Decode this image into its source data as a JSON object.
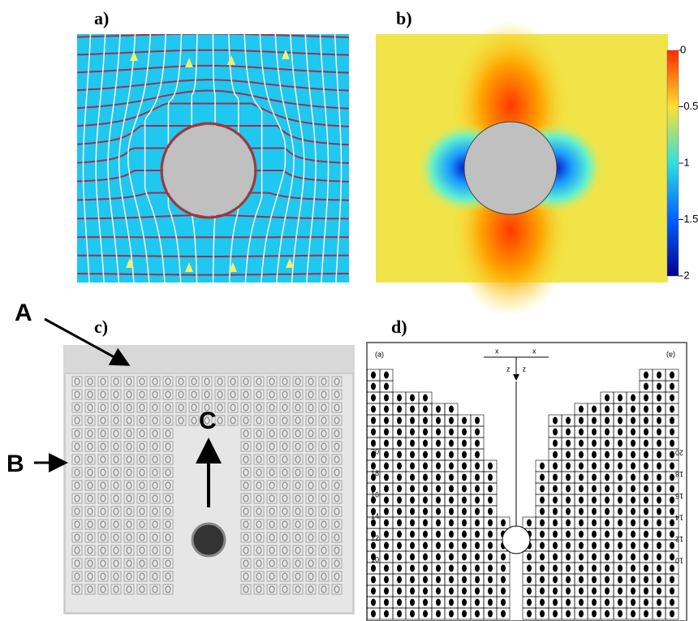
{
  "panels": {
    "a": {
      "label": "a)"
    },
    "b": {
      "label": "b)",
      "colorbar": {
        "lim": [
          -2,
          0
        ],
        "ticks": [
          0,
          -0.5,
          -1,
          -1.5,
          -2
        ]
      }
    },
    "c": {
      "label": "c)",
      "annotations": [
        "A",
        "B",
        "C"
      ]
    },
    "d": {
      "label": "d)",
      "corner_label": "(a)",
      "axis_x": "x",
      "axis_z": "z",
      "scale_ticks": [
        20,
        18,
        16,
        14,
        12,
        10
      ]
    }
  }
}
